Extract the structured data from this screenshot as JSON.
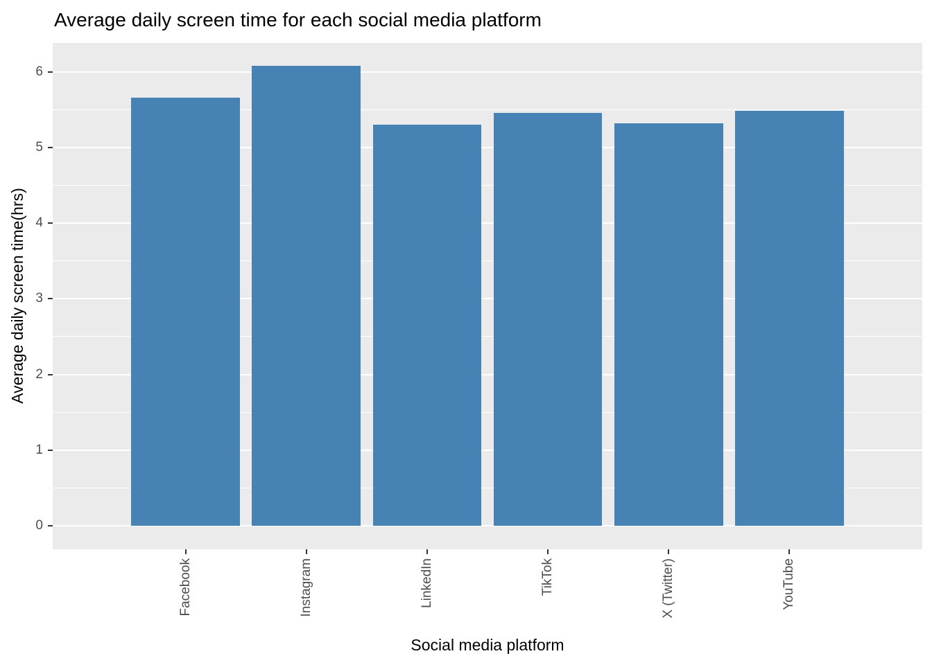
{
  "chart_data": {
    "type": "bar",
    "title": "Average daily screen time for each social media platform",
    "xlabel": "Social media platform",
    "ylabel": "Average daily screen time(hrs)",
    "categories": [
      "Facebook",
      "Instagram",
      "LinkedIn",
      "TikTok",
      "X (Twitter)",
      "YouTube"
    ],
    "values": [
      5.66,
      6.08,
      5.3,
      5.46,
      5.32,
      5.48
    ],
    "yticks": [
      0,
      1,
      2,
      3,
      4,
      5,
      6
    ],
    "minor_ticks": [
      0.5,
      1.5,
      2.5,
      3.5,
      4.5,
      5.5
    ],
    "ylim": [
      -0.31,
      6.38
    ],
    "bar_width_frac": 0.9,
    "outer_pad_units": 0.6,
    "grid": true,
    "legend": "none",
    "colors": {
      "bar": "#4682B4",
      "panel_bg": "#EBEBEB",
      "gridline": "#FFFFFF",
      "tick_label": "#4D4D4D",
      "tick_mark": "#333333",
      "title_text": "#000000"
    }
  }
}
